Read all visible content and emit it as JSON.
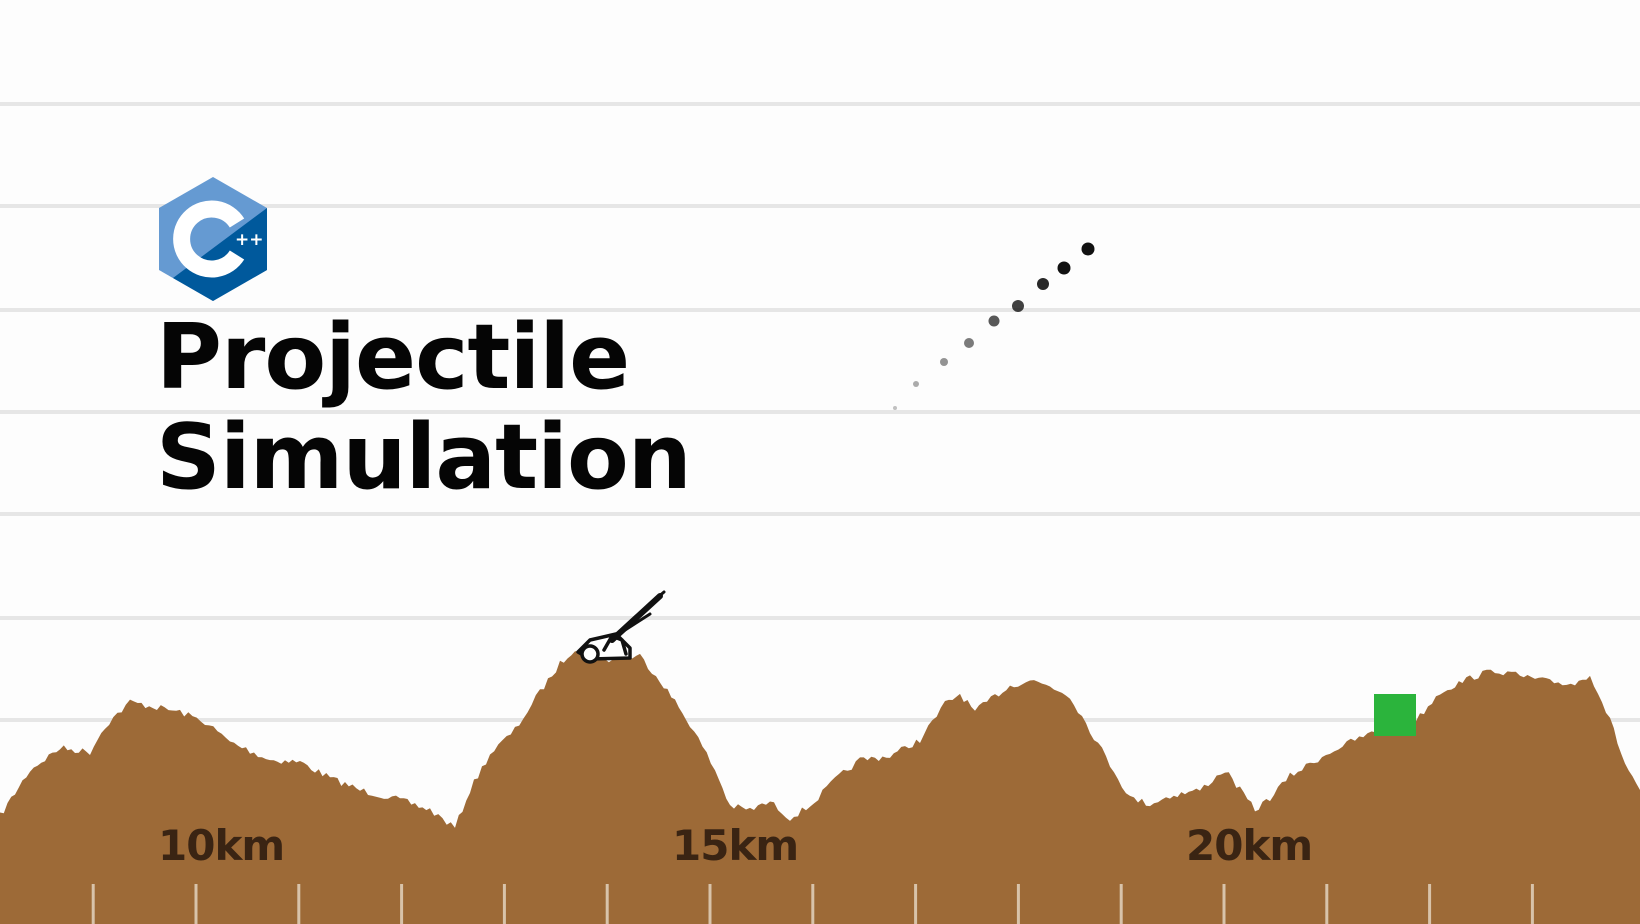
{
  "title": {
    "line1": "Projectile",
    "line2": "Simulation"
  },
  "logo": {
    "icon": "cpp-logo-icon",
    "text": "C++",
    "colors": {
      "light": "#659ad2",
      "dark": "#00599c",
      "darker": "#004482"
    }
  },
  "ruler": {
    "labels": [
      "10km",
      "15km",
      "20km"
    ],
    "label_km": [
      10,
      15,
      20
    ],
    "minor_tick_step_km": 1
  },
  "colors": {
    "terrain": "#9d6a37",
    "gridline": "#e6e6e6",
    "target": "#2bb43c",
    "projectile": "#111111",
    "label": "#3a2413"
  },
  "scene": {
    "cannon_icon": "cannon-icon",
    "target_icon": "target-square-icon",
    "projectile_trail_icon": "projectile-dot-icon"
  }
}
